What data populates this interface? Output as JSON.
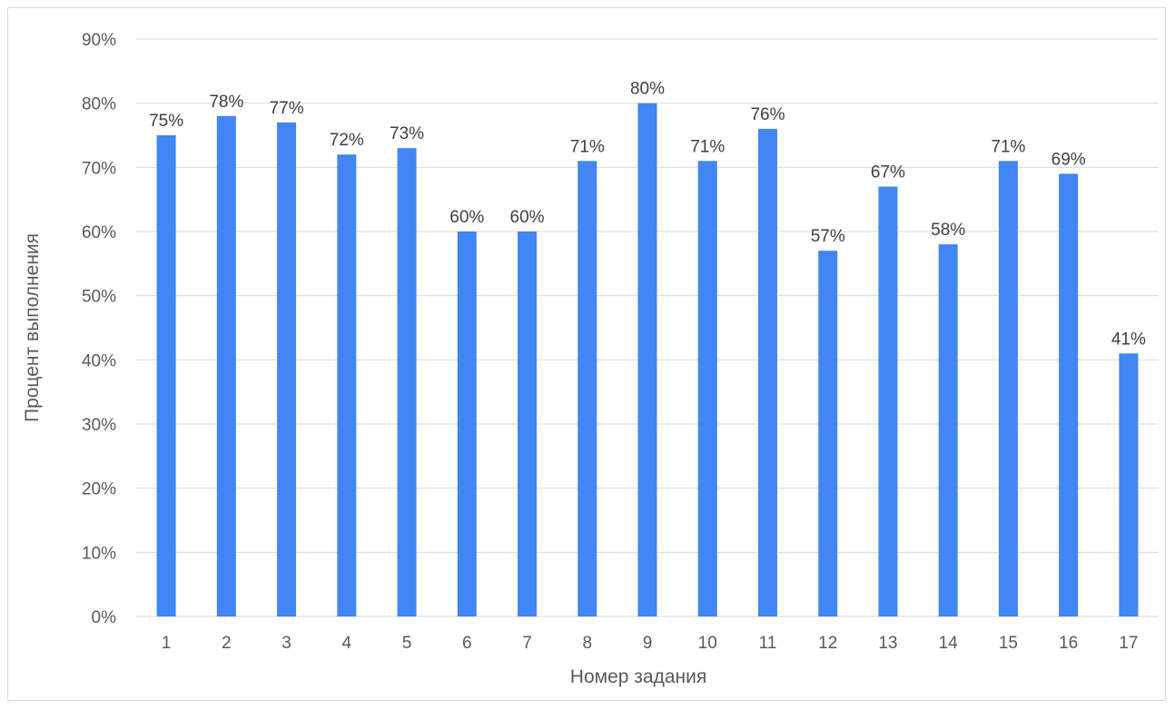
{
  "chart_data": {
    "type": "bar",
    "xlabel": "Номер задания",
    "ylabel": "Процент выполнения",
    "categories": [
      "1",
      "2",
      "3",
      "4",
      "5",
      "6",
      "7",
      "8",
      "9",
      "10",
      "11",
      "12",
      "13",
      "14",
      "15",
      "16",
      "17"
    ],
    "values": [
      75,
      78,
      77,
      72,
      73,
      60,
      60,
      71,
      80,
      71,
      76,
      57,
      67,
      58,
      71,
      69,
      41
    ],
    "data_labels": [
      "75%",
      "78%",
      "77%",
      "72%",
      "73%",
      "60%",
      "60%",
      "71%",
      "80%",
      "71%",
      "76%",
      "57%",
      "67%",
      "58%",
      "71%",
      "69%",
      "41%"
    ],
    "ylim": [
      0,
      90
    ],
    "yticks": [
      0,
      10,
      20,
      30,
      40,
      50,
      60,
      70,
      80,
      90
    ],
    "ytick_labels": [
      "0%",
      "10%",
      "20%",
      "30%",
      "40%",
      "50%",
      "60%",
      "70%",
      "80%",
      "90%"
    ],
    "grid": true,
    "bar_color": "#4285f4"
  }
}
